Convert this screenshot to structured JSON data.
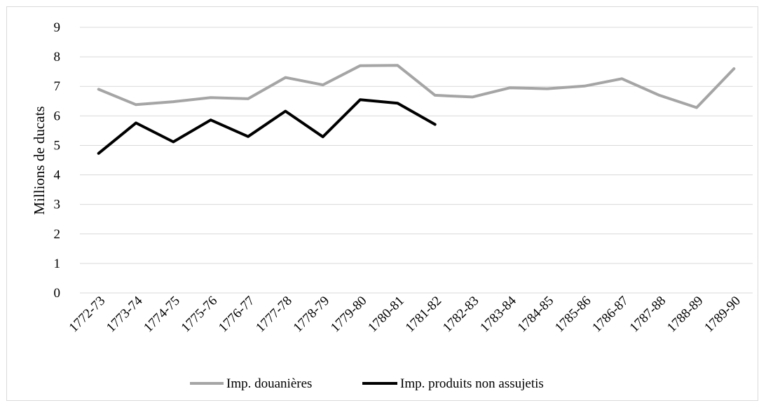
{
  "chart_data": {
    "type": "line",
    "title": "",
    "xlabel": "",
    "ylabel": "Millions de ducats",
    "ylim": [
      0,
      9
    ],
    "yticks": [
      "0",
      "1",
      "2",
      "3",
      "4",
      "5",
      "6",
      "7",
      "8",
      "9"
    ],
    "grid": true,
    "legend_position": "bottom",
    "categories": [
      "1772-73",
      "1773-74",
      "1774-75",
      "1775-76",
      "1776-77",
      "1777-78",
      "1778-79",
      "1779-80",
      "1780-81",
      "1781-82",
      "1782-83",
      "1783-84",
      "1784-85",
      "1785-86",
      "1786-87",
      "1787-88",
      "1788-89",
      "1789-90"
    ],
    "series": [
      {
        "name": "Imp. douanières",
        "color": "#a5a5a5",
        "values": [
          6.9,
          6.38,
          6.48,
          6.62,
          6.58,
          7.3,
          7.05,
          7.7,
          7.71,
          6.7,
          6.64,
          6.95,
          6.92,
          7.01,
          7.26,
          6.7,
          6.28,
          7.6
        ]
      },
      {
        "name": "Imp. produits non assujetis",
        "color": "#000000",
        "values": [
          4.73,
          5.76,
          5.12,
          5.86,
          5.3,
          6.16,
          5.29,
          6.55,
          6.43,
          5.71,
          null,
          null,
          null,
          null,
          null,
          null,
          null,
          null
        ]
      }
    ]
  }
}
